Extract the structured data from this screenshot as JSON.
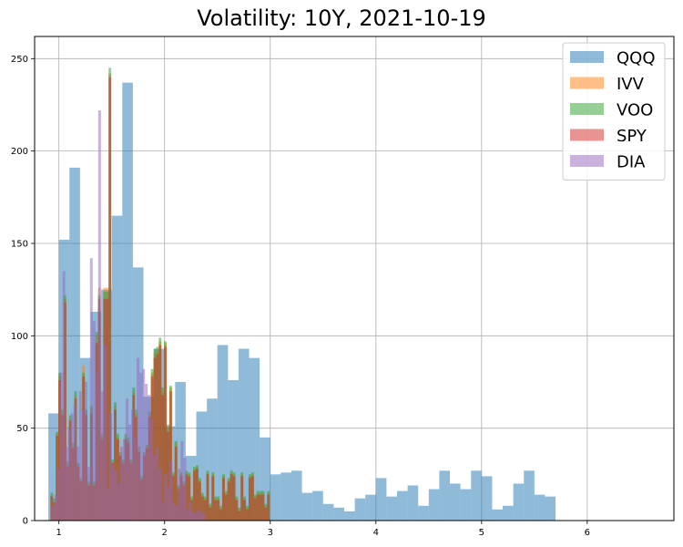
{
  "chart_data": {
    "type": "bar",
    "title": "Volatility: 10Y, 2021-10-19",
    "xlabel": "",
    "ylabel": "",
    "xlim": [
      0.77,
      6.82
    ],
    "ylim": [
      0,
      262
    ],
    "xticks": [
      1,
      2,
      3,
      4,
      5,
      6
    ],
    "yticks": [
      0,
      50,
      100,
      150,
      200,
      250
    ],
    "grid": true,
    "legend_position": "top-right",
    "series": [
      {
        "name": "QQQ",
        "color": "#1f77b4",
        "alpha": 0.5,
        "x_start": 0.9,
        "bin_width": 0.1,
        "values": [
          58,
          152,
          191,
          88,
          113,
          125,
          165,
          237,
          137,
          67,
          93,
          51,
          75,
          35,
          59,
          66,
          95,
          76,
          93,
          88,
          45,
          25,
          26,
          27,
          15,
          16,
          9,
          7,
          5,
          12,
          14,
          23,
          13,
          16,
          19,
          8,
          17,
          27,
          20,
          17,
          27,
          24,
          6,
          8,
          20,
          27,
          14,
          13
        ]
      },
      {
        "name": "IVV",
        "color": "#ff7f0e",
        "alpha": 0.5,
        "x_start": 0.92,
        "bin_width": 0.025,
        "values": [
          14,
          10,
          47,
          78,
          58,
          120,
          30,
          55,
          40,
          68,
          30,
          22,
          84,
          58,
          20,
          60,
          20,
          100,
          126,
          45,
          126,
          126,
          242,
          32,
          62,
          45,
          36,
          32,
          45,
          43,
          32,
          70,
          58,
          38,
          23,
          36,
          40,
          57,
          80,
          91,
          92,
          97,
          70,
          96,
          50,
          72,
          25,
          42,
          18,
          25,
          20,
          26,
          25,
          12,
          28,
          29,
          22,
          14,
          12,
          26,
          8,
          25,
          12,
          12,
          7,
          24,
          15,
          22,
          26,
          25,
          12,
          6,
          25,
          12,
          7,
          24,
          25,
          13,
          15,
          15,
          15,
          8,
          15
        ]
      },
      {
        "name": "VOO",
        "color": "#2ca02c",
        "alpha": 0.5,
        "x_start": 0.92,
        "bin_width": 0.025,
        "values": [
          15,
          12,
          48,
          80,
          60,
          122,
          32,
          57,
          42,
          70,
          31,
          23,
          80,
          60,
          21,
          62,
          21,
          102,
          122,
          47,
          124,
          124,
          245,
          33,
          64,
          47,
          37,
          33,
          47,
          45,
          33,
          72,
          60,
          40,
          24,
          37,
          41,
          59,
          82,
          93,
          94,
          99,
          72,
          97,
          52,
          73,
          26,
          43,
          19,
          26,
          21,
          27,
          26,
          13,
          29,
          30,
          23,
          15,
          13,
          27,
          9,
          26,
          13,
          13,
          8,
          25,
          16,
          23,
          27,
          26,
          13,
          7,
          26,
          13,
          8,
          25,
          26,
          14,
          16,
          16,
          16,
          9,
          16
        ]
      },
      {
        "name": "SPY",
        "color": "#d62728",
        "alpha": 0.5,
        "x_start": 0.92,
        "bin_width": 0.025,
        "values": [
          13,
          10,
          46,
          76,
          57,
          118,
          29,
          54,
          39,
          66,
          29,
          21,
          78,
          57,
          19,
          58,
          19,
          96,
          120,
          44,
          120,
          120,
          240,
          31,
          60,
          44,
          35,
          31,
          44,
          42,
          31,
          68,
          56,
          37,
          22,
          35,
          39,
          56,
          78,
          88,
          90,
          95,
          68,
          94,
          48,
          70,
          24,
          40,
          17,
          24,
          19,
          25,
          24,
          11,
          27,
          28,
          21,
          13,
          11,
          25,
          7,
          24,
          11,
          11,
          6,
          23,
          14,
          21,
          25,
          24,
          11,
          5,
          24,
          11,
          6,
          23,
          24,
          12,
          14,
          14,
          14,
          7,
          14
        ]
      },
      {
        "name": "DIA",
        "color": "#9467bd",
        "alpha": 0.5,
        "x_start": 0.93,
        "bin_width": 0.026,
        "values": [
          8,
          14,
          28,
          80,
          135,
          40,
          50,
          58,
          62,
          40,
          70,
          60,
          75,
          29,
          142,
          108,
          80,
          222,
          70,
          95,
          17,
          58,
          30,
          27,
          20,
          40,
          44,
          66,
          52,
          60,
          45,
          88,
          80,
          82,
          74,
          68,
          55,
          36,
          40,
          28,
          10,
          25,
          18,
          32,
          10,
          8,
          28,
          43,
          34,
          6,
          10,
          5,
          4,
          6,
          5,
          4
        ]
      }
    ]
  }
}
